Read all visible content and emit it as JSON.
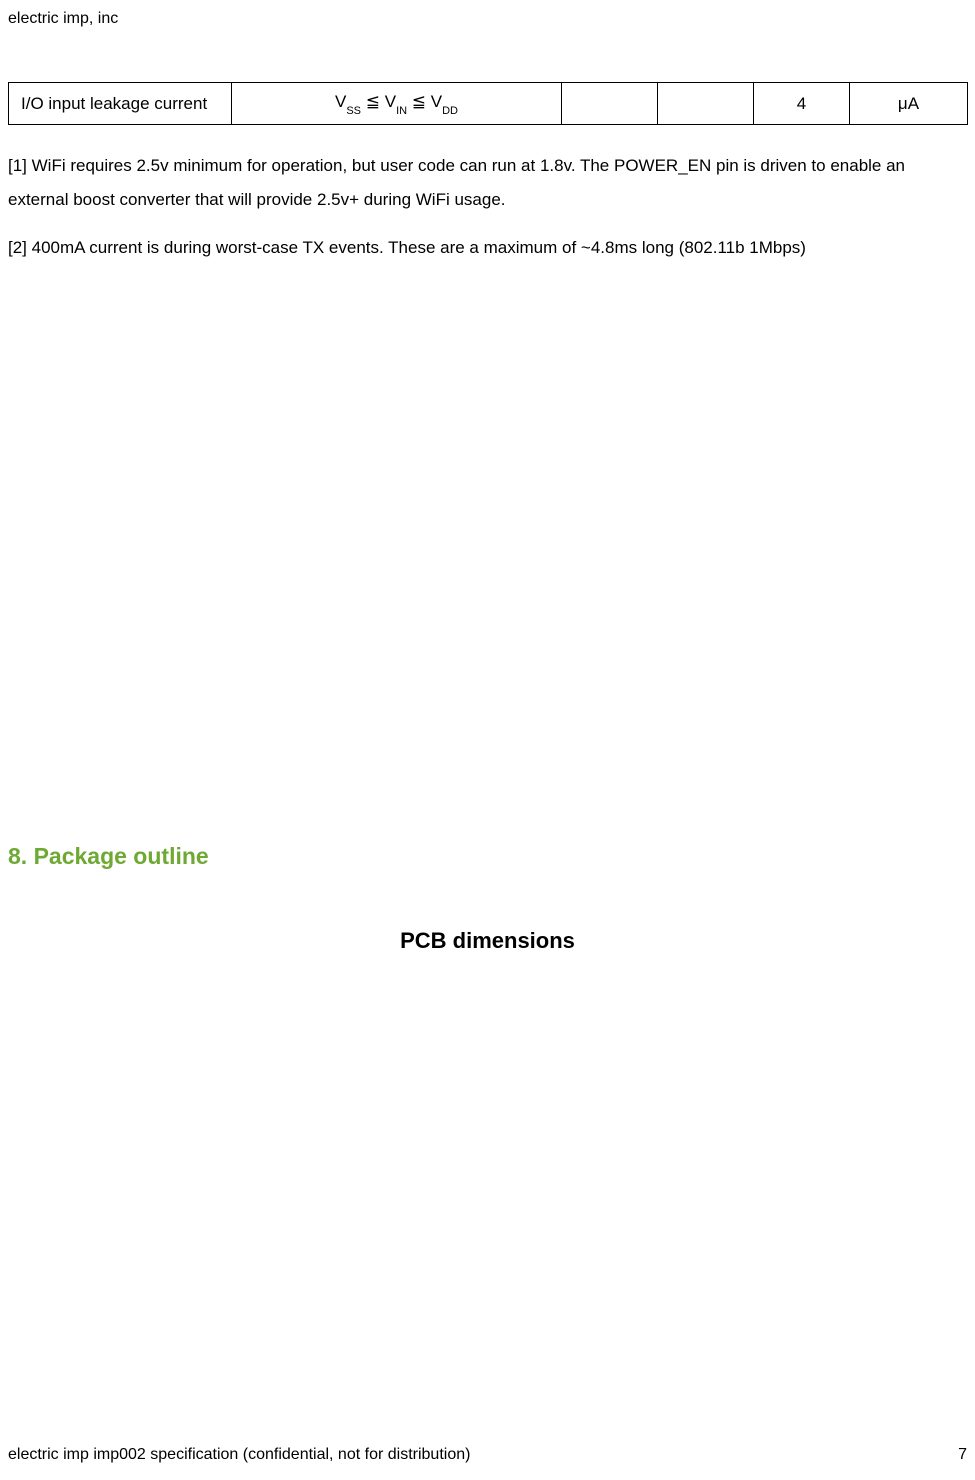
{
  "header": {
    "company": "electric imp, inc"
  },
  "table": {
    "row": {
      "param": "I/O input leakage current",
      "condition_html": "V<span class='sub'>SS</span> ≦ V<span class='sub'>IN</span> ≦ V<span class='sub'>DD</span>",
      "col3": "",
      "col4": "",
      "col5": "4",
      "col6": "μA"
    },
    "border_color": "#000000"
  },
  "footnotes": {
    "note1": "[1] WiFi requires 2.5v minimum for operation, but user code can run at 1.8v. The POWER_EN pin is driven to enable an external boost converter that will provide 2.5v+ during WiFi usage.",
    "note2": "[2] 400mA current is during worst-case TX events. These are a maximum of ~4.8ms long (802.11b 1Mbps)"
  },
  "section": {
    "heading": "8. Package outline",
    "subheading": "PCB dimensions",
    "heading_color": "#6ea933"
  },
  "footer": {
    "text": "electric imp imp002 specification (confidential, not for distribution)",
    "page": "7"
  }
}
